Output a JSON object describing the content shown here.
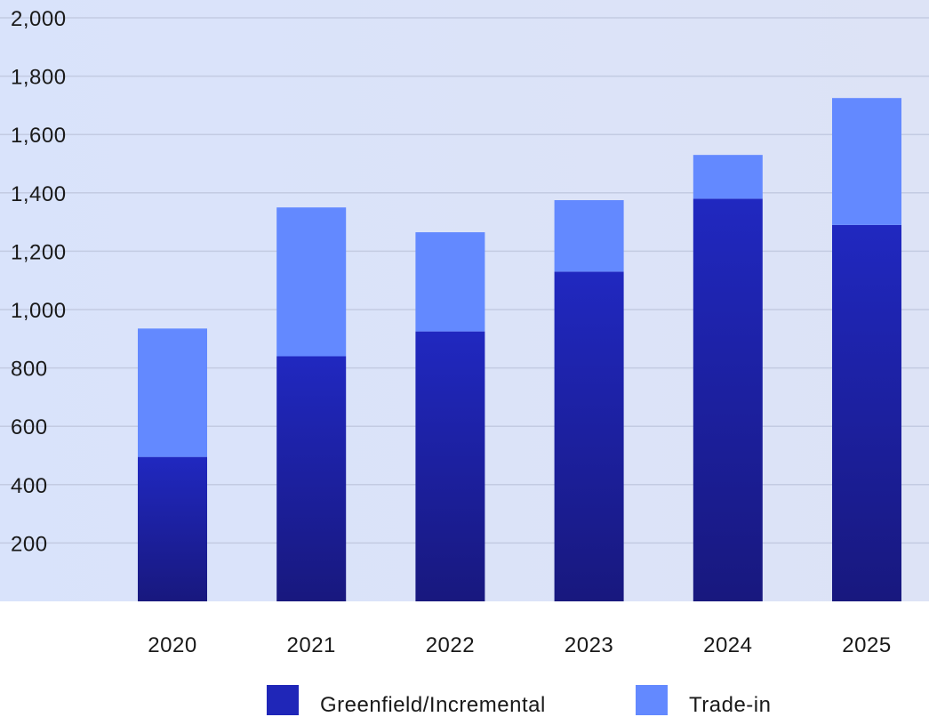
{
  "chart_data": {
    "type": "bar",
    "stacked": true,
    "categories": [
      "2020",
      "2021",
      "2022",
      "2023",
      "2024",
      "2025"
    ],
    "series": [
      {
        "name": "Greenfield/Incremental",
        "values": [
          495,
          840,
          925,
          1130,
          1380,
          1290
        ],
        "color": "#1f26b8"
      },
      {
        "name": "Trade-in",
        "values": [
          440,
          510,
          340,
          245,
          150,
          435
        ],
        "color": "#6389ff"
      }
    ],
    "title": "",
    "xlabel": "",
    "ylabel": "",
    "ylim": [
      0,
      2000
    ],
    "yticks": [
      200,
      400,
      600,
      800,
      1000,
      1200,
      1400,
      1600,
      1800,
      2000
    ],
    "ytick_labels": [
      "200",
      "400",
      "600",
      "800",
      "1,000",
      "1,200",
      "1,400",
      "1,600",
      "1,800",
      "2,000"
    ],
    "grid": true,
    "legend_position": "bottom-center",
    "plot_background": "#dbe3fa"
  }
}
